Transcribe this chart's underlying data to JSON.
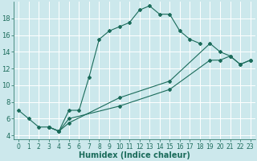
{
  "xlabel": "Humidex (Indice chaleur)",
  "bg_color": "#cce8ec",
  "grid_color": "#ffffff",
  "line_color": "#1a6b5a",
  "xlim": [
    -0.5,
    23.5
  ],
  "ylim": [
    3.5,
    20
  ],
  "xticks": [
    0,
    1,
    2,
    3,
    4,
    5,
    6,
    7,
    8,
    9,
    10,
    11,
    12,
    13,
    14,
    15,
    16,
    17,
    18,
    19,
    20,
    21,
    22,
    23
  ],
  "yticks": [
    4,
    6,
    8,
    10,
    12,
    14,
    16,
    18
  ],
  "line1_x": [
    0,
    1,
    2,
    3,
    4,
    5,
    6,
    7,
    8,
    9,
    10,
    11,
    12,
    13,
    14,
    15,
    16,
    17,
    18
  ],
  "line1_y": [
    7,
    6,
    5,
    5,
    4.5,
    7,
    7,
    11,
    15.5,
    16.5,
    17,
    17.5,
    19,
    19.5,
    18.5,
    18.5,
    16.5,
    15.5,
    15
  ],
  "line2_x": [
    3,
    4,
    5,
    10,
    15,
    19,
    20,
    21,
    22,
    23
  ],
  "line2_y": [
    5,
    4.5,
    5.5,
    8.5,
    10.5,
    15,
    14,
    13.5,
    12.5,
    13
  ],
  "line3_x": [
    3,
    4,
    5,
    10,
    15,
    19,
    20,
    21,
    22,
    23
  ],
  "line3_y": [
    5,
    4.5,
    6,
    7.5,
    9.5,
    13,
    13,
    13.5,
    12.5,
    13
  ],
  "xlabel_fontsize": 7,
  "tick_fontsize": 5.5
}
